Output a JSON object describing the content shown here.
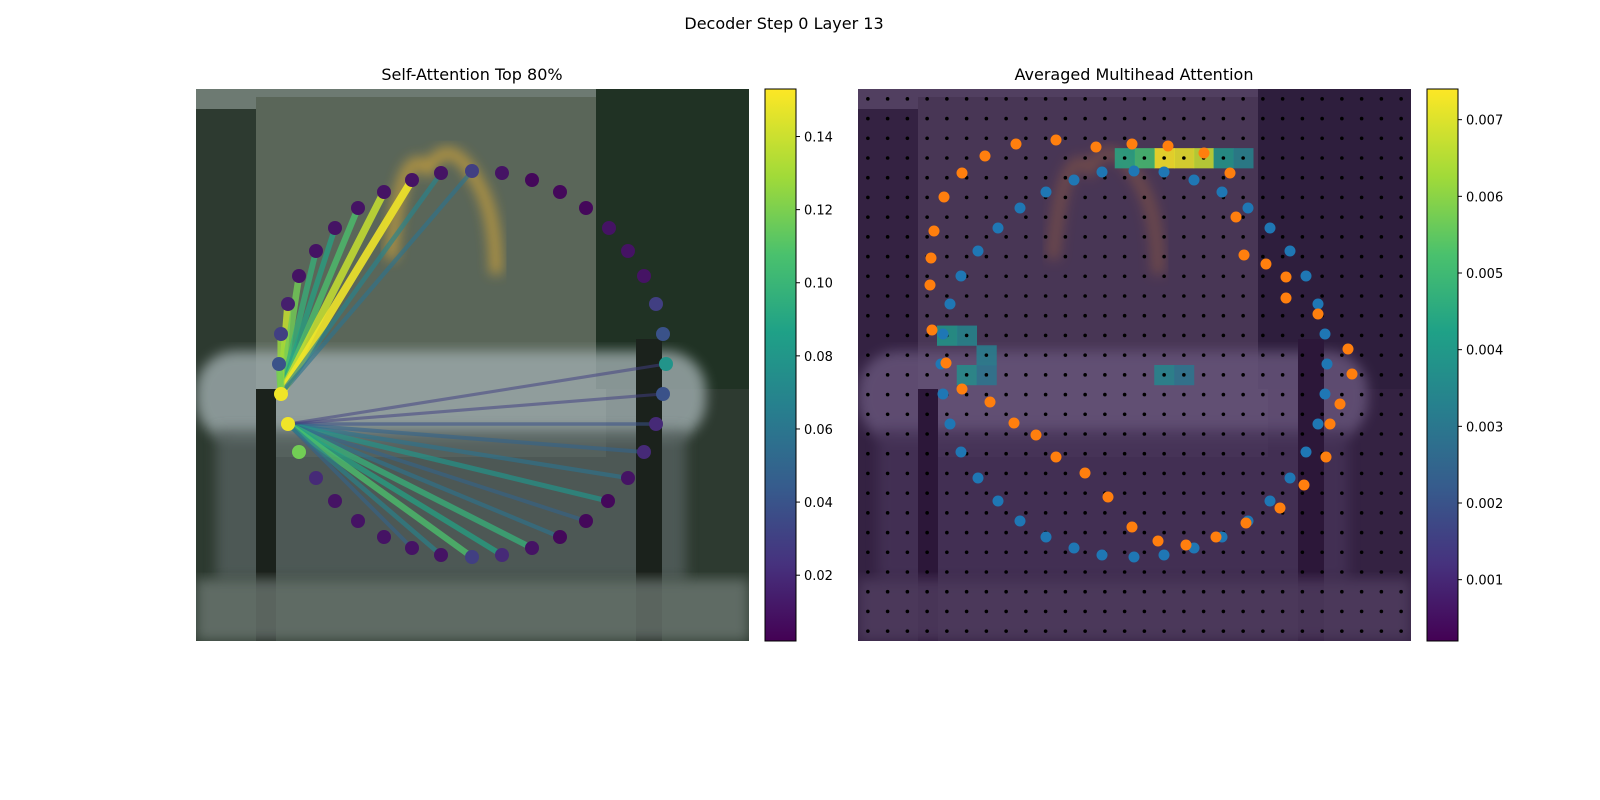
{
  "figure": {
    "title": "Decoder Step 0 Layer 13"
  },
  "colors": {
    "background": "#ffffff",
    "blue_points": "#1f77b4",
    "orange_points": "#ff7f0e",
    "grid_dots": "#000000",
    "photo_dark": "#2d3a30",
    "photo_sky": "#6d7a72",
    "photo_wall": "#5a6659",
    "photo_truck": "#9aa7a8",
    "photo_trees": "#203224",
    "arch_color": "#d8a838"
  },
  "chart_data": [
    {
      "type": "scatter",
      "title": "Self-Attention Top 80%",
      "colormap": "viridis",
      "colorbar": {
        "min": 0.002,
        "max": 0.153,
        "ticks": [
          "0.02",
          "0.04",
          "0.06",
          "0.08",
          "0.10",
          "0.12",
          "0.14"
        ],
        "tick_values": [
          0.02,
          0.04,
          0.06,
          0.08,
          0.1,
          0.12,
          0.14
        ]
      },
      "query_points": [
        7,
        8
      ],
      "points": [
        {
          "x": 472,
          "y": 171,
          "w": 0.03
        },
        {
          "x": 502,
          "y": 173,
          "w": 0.01
        },
        {
          "x": 532,
          "y": 180,
          "w": 0.005
        },
        {
          "x": 560,
          "y": 192,
          "w": 0.005
        },
        {
          "x": 586,
          "y": 208,
          "w": 0.005
        },
        {
          "x": 609,
          "y": 228,
          "w": 0.01
        },
        {
          "x": 628,
          "y": 251,
          "w": 0.01
        },
        {
          "x": 644,
          "y": 276,
          "w": 0.01
        },
        {
          "x": 656,
          "y": 304,
          "w": 0.03
        },
        {
          "x": 663,
          "y": 334,
          "w": 0.04
        },
        {
          "x": 666,
          "y": 364,
          "w": 0.08
        },
        {
          "x": 663,
          "y": 394,
          "w": 0.04
        },
        {
          "x": 656,
          "y": 424,
          "w": 0.02
        },
        {
          "x": 644,
          "y": 452,
          "w": 0.02
        },
        {
          "x": 628,
          "y": 478,
          "w": 0.01
        },
        {
          "x": 608,
          "y": 501,
          "w": 0.005
        },
        {
          "x": 586,
          "y": 521,
          "w": 0.005
        },
        {
          "x": 560,
          "y": 537,
          "w": 0.005
        },
        {
          "x": 532,
          "y": 548,
          "w": 0.01
        },
        {
          "x": 502,
          "y": 555,
          "w": 0.02
        },
        {
          "x": 472,
          "y": 557,
          "w": 0.03
        },
        {
          "x": 441,
          "y": 555,
          "w": 0.01
        },
        {
          "x": 412,
          "y": 548,
          "w": 0.01
        },
        {
          "x": 384,
          "y": 537,
          "w": 0.01
        },
        {
          "x": 358,
          "y": 521,
          "w": 0.01
        },
        {
          "x": 335,
          "y": 501,
          "w": 0.01
        },
        {
          "x": 316,
          "y": 478,
          "w": 0.02
        },
        {
          "x": 299,
          "y": 452,
          "w": 0.12
        },
        {
          "x": 288,
          "y": 424,
          "w": 0.15
        },
        {
          "x": 281,
          "y": 394,
          "w": 0.15
        },
        {
          "x": 279,
          "y": 364,
          "w": 0.04
        },
        {
          "x": 281,
          "y": 334,
          "w": 0.03
        },
        {
          "x": 288,
          "y": 304,
          "w": 0.015
        },
        {
          "x": 299,
          "y": 276,
          "w": 0.01
        },
        {
          "x": 316,
          "y": 251,
          "w": 0.01
        },
        {
          "x": 335,
          "y": 228,
          "w": 0.01
        },
        {
          "x": 358,
          "y": 208,
          "w": 0.01
        },
        {
          "x": 384,
          "y": 192,
          "w": 0.01
        },
        {
          "x": 412,
          "y": 180,
          "w": 0.01
        },
        {
          "x": 441,
          "y": 173,
          "w": 0.01
        }
      ],
      "edges": [
        {
          "from": 29,
          "to": 32,
          "w": 0.14
        },
        {
          "from": 29,
          "to": 33,
          "w": 0.12
        },
        {
          "from": 29,
          "to": 34,
          "w": 0.1
        },
        {
          "from": 29,
          "to": 35,
          "w": 0.09
        },
        {
          "from": 29,
          "to": 36,
          "w": 0.11
        },
        {
          "from": 29,
          "to": 37,
          "w": 0.14
        },
        {
          "from": 29,
          "to": 38,
          "w": 0.15
        },
        {
          "from": 29,
          "to": 39,
          "w": 0.07
        },
        {
          "from": 29,
          "to": 0,
          "w": 0.06
        },
        {
          "from": 29,
          "to": 31,
          "w": 0.13
        },
        {
          "from": 29,
          "to": 30,
          "w": 0.12
        },
        {
          "from": 28,
          "to": 12,
          "w": 0.04
        },
        {
          "from": 28,
          "to": 13,
          "w": 0.05
        },
        {
          "from": 28,
          "to": 14,
          "w": 0.06
        },
        {
          "from": 28,
          "to": 15,
          "w": 0.08
        },
        {
          "from": 28,
          "to": 16,
          "w": 0.05
        },
        {
          "from": 28,
          "to": 17,
          "w": 0.06
        },
        {
          "from": 28,
          "to": 18,
          "w": 0.1
        },
        {
          "from": 28,
          "to": 19,
          "w": 0.09
        },
        {
          "from": 28,
          "to": 20,
          "w": 0.11
        },
        {
          "from": 28,
          "to": 21,
          "w": 0.07
        },
        {
          "from": 28,
          "to": 11,
          "w": 0.03
        },
        {
          "from": 28,
          "to": 10,
          "w": 0.03
        },
        {
          "from": 28,
          "to": 22,
          "w": 0.05
        }
      ]
    },
    {
      "type": "heatmap",
      "title": "Averaged Multihead Attention",
      "colormap": "viridis",
      "colorbar": {
        "min": 0.0002,
        "max": 0.0074,
        "ticks": [
          "0.001",
          "0.002",
          "0.003",
          "0.004",
          "0.005",
          "0.006",
          "0.007"
        ],
        "tick_values": [
          0.001,
          0.002,
          0.003,
          0.004,
          0.005,
          0.006,
          0.007
        ]
      },
      "grid": {
        "cols": 28,
        "rows": 28
      },
      "hot_cells": [
        {
          "col": 15,
          "row": 3,
          "v": 0.0074
        },
        {
          "col": 16,
          "row": 3,
          "v": 0.0072
        },
        {
          "col": 17,
          "row": 3,
          "v": 0.0068
        },
        {
          "col": 14,
          "row": 3,
          "v": 0.0052
        },
        {
          "col": 13,
          "row": 3,
          "v": 0.0045
        },
        {
          "col": 18,
          "row": 3,
          "v": 0.004
        },
        {
          "col": 19,
          "row": 3,
          "v": 0.0034
        },
        {
          "col": 4,
          "row": 12,
          "v": 0.004
        },
        {
          "col": 5,
          "row": 12,
          "v": 0.0035
        },
        {
          "col": 6,
          "row": 13,
          "v": 0.0033
        },
        {
          "col": 5,
          "row": 14,
          "v": 0.0037
        },
        {
          "col": 6,
          "row": 14,
          "v": 0.003
        },
        {
          "col": 15,
          "row": 14,
          "v": 0.0035
        },
        {
          "col": 16,
          "row": 14,
          "v": 0.003
        }
      ],
      "series": [
        {
          "color": "blue",
          "x": [
            1102,
            1134,
            1164,
            1194,
            1222,
            1248,
            1270,
            1290,
            1306,
            1318,
            1325,
            1327,
            1325,
            1318,
            1306,
            1290,
            1270,
            1248,
            1222,
            1194,
            1164,
            1134,
            1102,
            1074,
            1046,
            1020,
            998,
            978,
            961,
            950,
            943,
            941,
            943,
            950,
            961,
            978,
            998,
            1020,
            1046,
            1074
          ],
          "y": [
            172,
            171,
            172,
            180,
            192,
            208,
            228,
            251,
            276,
            304,
            334,
            364,
            394,
            424,
            452,
            478,
            501,
            521,
            537,
            548,
            555,
            557,
            555,
            548,
            537,
            521,
            501,
            478,
            452,
            424,
            394,
            364,
            334,
            304,
            276,
            251,
            228,
            208,
            192,
            180
          ]
        },
        {
          "color": "orange",
          "x": [
            1056,
            1096,
            1132,
            1168,
            1204,
            1230,
            1236,
            1244,
            1266,
            1286,
            1286,
            1318,
            1348,
            1352,
            1340,
            1330,
            1326,
            1304,
            1280,
            1246,
            1216,
            1186,
            1158,
            1132,
            1108,
            1085,
            1056,
            1036,
            1014,
            990,
            962,
            946,
            932,
            930,
            931,
            934,
            944,
            962,
            985,
            1016
          ],
          "y": [
            140,
            147,
            144,
            146,
            153,
            173,
            217,
            255,
            264,
            277,
            298,
            314,
            349,
            374,
            404,
            424,
            457,
            485,
            508,
            523,
            537,
            545,
            541,
            527,
            497,
            473,
            457,
            435,
            423,
            402,
            389,
            363,
            330,
            285,
            258,
            231,
            197,
            173,
            156,
            144
          ]
        }
      ]
    }
  ]
}
